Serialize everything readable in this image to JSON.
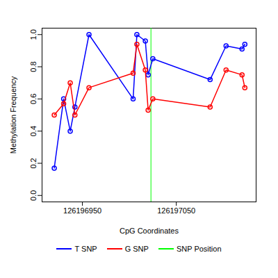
{
  "chart_data": {
    "type": "line",
    "x_label": "CpG Coordinates",
    "y_label": "Methylation Frequency",
    "marker": "circle",
    "line_style": "solid",
    "xlim": [
      126196907,
      126197135
    ],
    "xticks": [
      126196950,
      126197050
    ],
    "ylim": [
      -0.04,
      1.04
    ],
    "yticks": [
      {
        "value": 0,
        "label": "0.0"
      },
      {
        "value": 0.2,
        "label": "0.2"
      },
      {
        "value": 0.4,
        "label": "0.4"
      },
      {
        "value": 0.6,
        "label": "0.6"
      },
      {
        "value": 0.8,
        "label": "0.8"
      },
      {
        "value": 1,
        "label": "1.0"
      }
    ],
    "x": [
      126196920,
      126196930,
      126196937,
      126196942,
      126196957,
      126197004,
      126197008,
      126197017,
      126197020,
      126197025,
      126197086,
      126197103,
      126197120,
      126197123
    ],
    "series": [
      {
        "name": "T SNP",
        "color": "#0000ff",
        "values": [
          0.17,
          0.6,
          0.4,
          0.55,
          1.0,
          0.6,
          1.0,
          0.96,
          0.75,
          0.85,
          0.72,
          0.93,
          0.91,
          0.94
        ]
      },
      {
        "name": "G SNP",
        "color": "#ff0000",
        "values": [
          0.5,
          0.57,
          0.7,
          0.5,
          0.67,
          0.76,
          0.94,
          0.78,
          0.53,
          0.6,
          0.55,
          0.78,
          0.75,
          0.67
        ]
      }
    ],
    "vlines": [
      {
        "name": "SNP Position",
        "x": 126197023,
        "color": "#00ff00"
      }
    ]
  }
}
